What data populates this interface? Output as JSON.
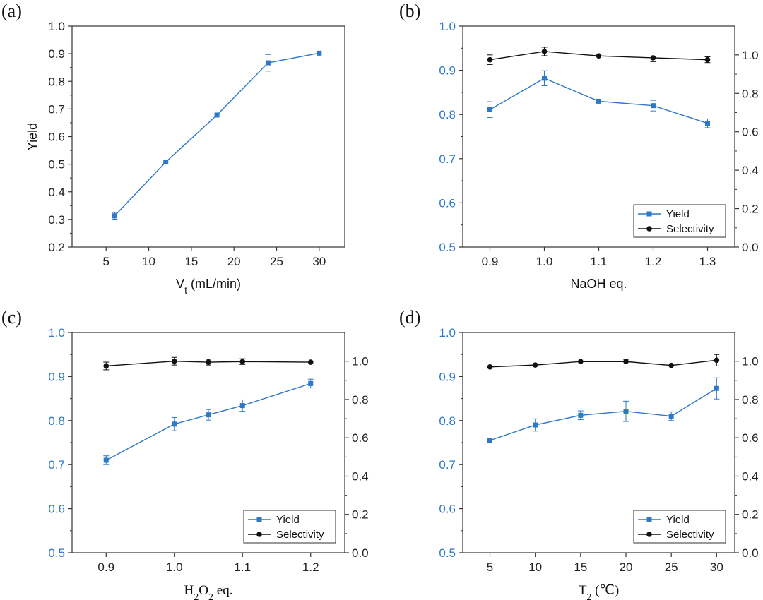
{
  "colors": {
    "yield": "#2e78c8",
    "selectivity": "#111111",
    "axis": "#333333"
  },
  "chart_data": [
    {
      "id": "a",
      "panel_label": "(a)",
      "type": "line",
      "title": "",
      "xlabel_main": "V",
      "xlabel_sub": "t",
      "xlabel_rest": " (mL/min)",
      "xlabel_serif": false,
      "ylabel": "Yield",
      "xlim": [
        1,
        33
      ],
      "ylim": [
        0.2,
        1.0
      ],
      "xticks": [
        5,
        10,
        15,
        20,
        25,
        30
      ],
      "xtick_labels": [
        "5",
        "10",
        "15",
        "20",
        "25",
        "30"
      ],
      "yticks": [
        0.2,
        0.3,
        0.4,
        0.5,
        0.6,
        0.7,
        0.8,
        0.9,
        1.0
      ],
      "ytick_labels": [
        "0.2",
        "0.3",
        "0.4",
        "0.5",
        "0.6",
        "0.7",
        "0.8",
        "0.9",
        "1.0"
      ],
      "left_blue": false,
      "series": [
        {
          "name": "Yield",
          "axis": "left",
          "marker": "square",
          "color": "#2e78c8",
          "x": [
            6,
            12,
            18,
            24,
            30
          ],
          "values": [
            0.313,
            0.508,
            0.678,
            0.867,
            0.902
          ],
          "errors": [
            0.012,
            0.0,
            0.0,
            0.03,
            0.0
          ]
        }
      ]
    },
    {
      "id": "b",
      "panel_label": "(b)",
      "type": "line",
      "title": "",
      "xlabel_main": "NaOH eq.",
      "xlabel_sub": "",
      "xlabel_rest": "",
      "xlabel_serif": false,
      "ylabel": "",
      "xlim": [
        0.85,
        1.35
      ],
      "ylim": [
        0.5,
        1.0
      ],
      "xticks": [
        0.9,
        1.0,
        1.1,
        1.2,
        1.3
      ],
      "xtick_labels": [
        "0.9",
        "1.0",
        "1.1",
        "1.2",
        "1.3"
      ],
      "yticks": [
        0.5,
        0.6,
        0.7,
        0.8,
        0.9,
        1.0
      ],
      "ytick_labels": [
        "0.5",
        "0.6",
        "0.7",
        "0.8",
        "0.9",
        "1.0"
      ],
      "left_blue": true,
      "ylim_right": [
        0.0,
        1.15
      ],
      "yticks_right": [
        0.0,
        0.2,
        0.4,
        0.6,
        0.8,
        1.0
      ],
      "ytick_labels_right": [
        "0.0",
        "0.2",
        "0.4",
        "0.6",
        "0.8",
        "1.0"
      ],
      "legend": {
        "position": "bottom-right",
        "entries": [
          "Yield",
          "Selectivity"
        ]
      },
      "series": [
        {
          "name": "Yield",
          "axis": "left",
          "marker": "square",
          "color": "#2e78c8",
          "x": [
            0.9,
            1.0,
            1.1,
            1.2,
            1.3
          ],
          "values": [
            0.811,
            0.882,
            0.83,
            0.82,
            0.78
          ],
          "errors": [
            0.018,
            0.017,
            0.0,
            0.012,
            0.01
          ]
        },
        {
          "name": "Selectivity",
          "axis": "right",
          "marker": "circle",
          "color": "#111111",
          "x": [
            0.9,
            1.0,
            1.1,
            1.2,
            1.3
          ],
          "values": [
            0.975,
            1.018,
            0.995,
            0.985,
            0.975
          ],
          "errors": [
            0.025,
            0.022,
            0.0,
            0.02,
            0.015
          ]
        }
      ]
    },
    {
      "id": "c",
      "panel_label": "(c)",
      "type": "line",
      "title": "",
      "xlabel_main": "H",
      "xlabel_sub": "2",
      "xlabel_rest": "O",
      "xlabel_sub2": "2",
      "xlabel_rest2": " eq.",
      "xlabel_serif": true,
      "ylabel": "",
      "xlim": [
        0.85,
        1.25
      ],
      "ylim": [
        0.5,
        1.0
      ],
      "xticks": [
        0.9,
        1.0,
        1.1,
        1.2
      ],
      "xtick_labels": [
        "0.9",
        "1.0",
        "1.1",
        "1.2"
      ],
      "yticks": [
        0.5,
        0.6,
        0.7,
        0.8,
        0.9,
        1.0
      ],
      "ytick_labels": [
        "0.5",
        "0.6",
        "0.7",
        "0.8",
        "0.9",
        "1.0"
      ],
      "left_blue": true,
      "ylim_right": [
        0.0,
        1.15
      ],
      "yticks_right": [
        0.0,
        0.2,
        0.4,
        0.6,
        0.8,
        1.0
      ],
      "ytick_labels_right": [
        "0.0",
        "0.2",
        "0.4",
        "0.6",
        "0.8",
        "1.0"
      ],
      "legend": {
        "position": "bottom-right",
        "entries": [
          "Yield",
          "Selectivity"
        ]
      },
      "series": [
        {
          "name": "Yield",
          "axis": "left",
          "marker": "square",
          "color": "#2e78c8",
          "x": [
            0.9,
            1.0,
            1.05,
            1.1,
            1.2
          ],
          "values": [
            0.71,
            0.792,
            0.813,
            0.834,
            0.884
          ],
          "errors": [
            0.01,
            0.015,
            0.012,
            0.013,
            0.01
          ]
        },
        {
          "name": "Selectivity",
          "axis": "right",
          "marker": "circle",
          "color": "#111111",
          "x": [
            0.9,
            1.0,
            1.05,
            1.1,
            1.2
          ],
          "values": [
            0.975,
            1.0,
            0.995,
            0.998,
            0.995
          ],
          "errors": [
            0.02,
            0.02,
            0.015,
            0.015,
            0.0
          ]
        }
      ]
    },
    {
      "id": "d",
      "panel_label": "(d)",
      "type": "line",
      "title": "",
      "xlabel_main": "T",
      "xlabel_sub": "2",
      "xlabel_rest": " (℃)",
      "xlabel_serif": true,
      "ylabel": "",
      "xlim": [
        2,
        32
      ],
      "ylim": [
        0.5,
        1.0
      ],
      "xticks": [
        5,
        10,
        15,
        20,
        25,
        30
      ],
      "xtick_labels": [
        "5",
        "10",
        "15",
        "20",
        "25",
        "30"
      ],
      "yticks": [
        0.5,
        0.6,
        0.7,
        0.8,
        0.9,
        1.0
      ],
      "ytick_labels": [
        "0.5",
        "0.6",
        "0.7",
        "0.8",
        "0.9",
        "1.0"
      ],
      "left_blue": true,
      "ylim_right": [
        0.0,
        1.15
      ],
      "yticks_right": [
        0.0,
        0.2,
        0.4,
        0.6,
        0.8,
        1.0
      ],
      "ytick_labels_right": [
        "0.0",
        "0.2",
        "0.4",
        "0.6",
        "0.8",
        "1.0"
      ],
      "legend": {
        "position": "bottom-right",
        "entries": [
          "Yield",
          "Selectivity"
        ]
      },
      "series": [
        {
          "name": "Yield",
          "axis": "left",
          "marker": "square",
          "color": "#2e78c8",
          "x": [
            5,
            10,
            15,
            20,
            25,
            30
          ],
          "values": [
            0.755,
            0.79,
            0.812,
            0.821,
            0.81,
            0.873
          ],
          "errors": [
            0.0,
            0.014,
            0.01,
            0.023,
            0.01,
            0.024
          ]
        },
        {
          "name": "Selectivity",
          "axis": "right",
          "marker": "circle",
          "color": "#111111",
          "x": [
            5,
            10,
            15,
            20,
            25,
            30
          ],
          "values": [
            0.97,
            0.98,
            0.998,
            0.998,
            0.978,
            1.005
          ],
          "errors": [
            0.0,
            0.0,
            0.0,
            0.012,
            0.0,
            0.03
          ]
        }
      ]
    }
  ]
}
